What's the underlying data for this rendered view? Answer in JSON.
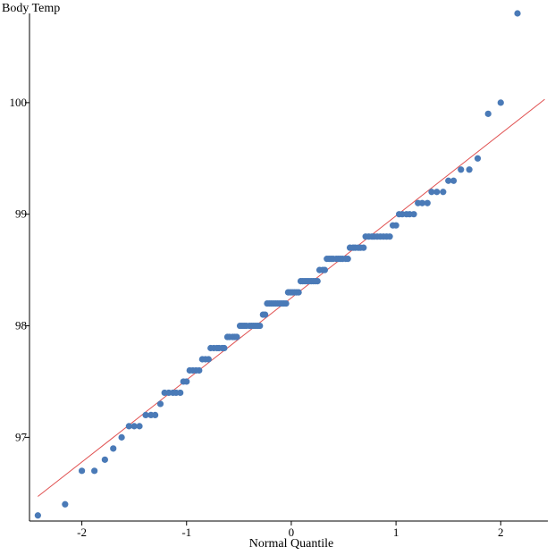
{
  "chart_data": {
    "type": "scatter",
    "xlabel": "Normal Quantile",
    "ylabel": "Body Temp",
    "xlim": [
      -2.5,
      2.45
    ],
    "ylim": [
      96.25,
      100.8
    ],
    "x_ticks": [
      -2,
      -1,
      0,
      1,
      2
    ],
    "x_tick_labels": [
      "-2",
      "-1",
      "0",
      "1",
      "2"
    ],
    "y_ticks": [
      97,
      98,
      99,
      100
    ],
    "y_tick_labels": [
      "97",
      "98",
      "99",
      "100"
    ],
    "grid": false,
    "point_color": "#4a7ab7",
    "line_color": "#e05050",
    "reference_line": {
      "x": [
        -2.42,
        2.42
      ],
      "y": [
        96.47,
        100.03
      ]
    },
    "points": [
      [
        -2.42,
        96.3
      ],
      [
        -2.16,
        96.4
      ],
      [
        -2.0,
        96.7
      ],
      [
        -1.88,
        96.7
      ],
      [
        -1.78,
        96.8
      ],
      [
        -1.7,
        96.9
      ],
      [
        -1.62,
        97.0
      ],
      [
        -1.55,
        97.1
      ],
      [
        -1.5,
        97.1
      ],
      [
        -1.45,
        97.1
      ],
      [
        -1.39,
        97.2
      ],
      [
        -1.34,
        97.2
      ],
      [
        -1.3,
        97.2
      ],
      [
        -1.25,
        97.3
      ],
      [
        -1.21,
        97.4
      ],
      [
        -1.17,
        97.4
      ],
      [
        -1.13,
        97.4
      ],
      [
        -1.1,
        97.4
      ],
      [
        -1.06,
        97.4
      ],
      [
        -1.03,
        97.5
      ],
      [
        -1.0,
        97.5
      ],
      [
        -0.97,
        97.6
      ],
      [
        -0.94,
        97.6
      ],
      [
        -0.91,
        97.6
      ],
      [
        -0.88,
        97.6
      ],
      [
        -0.85,
        97.7
      ],
      [
        -0.82,
        97.7
      ],
      [
        -0.79,
        97.7
      ],
      [
        -0.77,
        97.8
      ],
      [
        -0.74,
        97.8
      ],
      [
        -0.71,
        97.8
      ],
      [
        -0.69,
        97.8
      ],
      [
        -0.66,
        97.8
      ],
      [
        -0.64,
        97.8
      ],
      [
        -0.61,
        97.9
      ],
      [
        -0.59,
        97.9
      ],
      [
        -0.56,
        97.9
      ],
      [
        -0.54,
        97.9
      ],
      [
        -0.52,
        97.9
      ],
      [
        -0.49,
        98.0
      ],
      [
        -0.47,
        98.0
      ],
      [
        -0.45,
        98.0
      ],
      [
        -0.43,
        98.0
      ],
      [
        -0.4,
        98.0
      ],
      [
        -0.38,
        98.0
      ],
      [
        -0.36,
        98.0
      ],
      [
        -0.34,
        98.0
      ],
      [
        -0.32,
        98.0
      ],
      [
        -0.3,
        98.0
      ],
      [
        -0.27,
        98.1
      ],
      [
        -0.25,
        98.1
      ],
      [
        -0.23,
        98.2
      ],
      [
        -0.21,
        98.2
      ],
      [
        -0.19,
        98.2
      ],
      [
        -0.17,
        98.2
      ],
      [
        -0.15,
        98.2
      ],
      [
        -0.13,
        98.2
      ],
      [
        -0.11,
        98.2
      ],
      [
        -0.09,
        98.2
      ],
      [
        -0.07,
        98.2
      ],
      [
        -0.05,
        98.2
      ],
      [
        -0.03,
        98.3
      ],
      [
        -0.01,
        98.3
      ],
      [
        0.01,
        98.3
      ],
      [
        0.03,
        98.3
      ],
      [
        0.05,
        98.3
      ],
      [
        0.07,
        98.3
      ],
      [
        0.09,
        98.4
      ],
      [
        0.11,
        98.4
      ],
      [
        0.13,
        98.4
      ],
      [
        0.15,
        98.4
      ],
      [
        0.17,
        98.4
      ],
      [
        0.19,
        98.4
      ],
      [
        0.21,
        98.4
      ],
      [
        0.23,
        98.4
      ],
      [
        0.25,
        98.4
      ],
      [
        0.27,
        98.5
      ],
      [
        0.3,
        98.5
      ],
      [
        0.32,
        98.5
      ],
      [
        0.34,
        98.6
      ],
      [
        0.36,
        98.6
      ],
      [
        0.38,
        98.6
      ],
      [
        0.4,
        98.6
      ],
      [
        0.43,
        98.6
      ],
      [
        0.45,
        98.6
      ],
      [
        0.47,
        98.6
      ],
      [
        0.49,
        98.6
      ],
      [
        0.52,
        98.6
      ],
      [
        0.54,
        98.6
      ],
      [
        0.56,
        98.7
      ],
      [
        0.59,
        98.7
      ],
      [
        0.61,
        98.7
      ],
      [
        0.64,
        98.7
      ],
      [
        0.66,
        98.7
      ],
      [
        0.69,
        98.7
      ],
      [
        0.71,
        98.8
      ],
      [
        0.74,
        98.8
      ],
      [
        0.77,
        98.8
      ],
      [
        0.79,
        98.8
      ],
      [
        0.82,
        98.8
      ],
      [
        0.85,
        98.8
      ],
      [
        0.88,
        98.8
      ],
      [
        0.91,
        98.8
      ],
      [
        0.94,
        98.8
      ],
      [
        0.97,
        98.9
      ],
      [
        1.0,
        98.9
      ],
      [
        1.03,
        99.0
      ],
      [
        1.06,
        99.0
      ],
      [
        1.1,
        99.0
      ],
      [
        1.13,
        99.0
      ],
      [
        1.17,
        99.0
      ],
      [
        1.21,
        99.1
      ],
      [
        1.25,
        99.1
      ],
      [
        1.3,
        99.1
      ],
      [
        1.34,
        99.2
      ],
      [
        1.39,
        99.2
      ],
      [
        1.45,
        99.2
      ],
      [
        1.5,
        99.3
      ],
      [
        1.55,
        99.3
      ],
      [
        1.62,
        99.4
      ],
      [
        1.7,
        99.4
      ],
      [
        1.78,
        99.5
      ],
      [
        1.88,
        99.9
      ],
      [
        2.0,
        100.0
      ],
      [
        2.16,
        100.8
      ]
    ]
  }
}
